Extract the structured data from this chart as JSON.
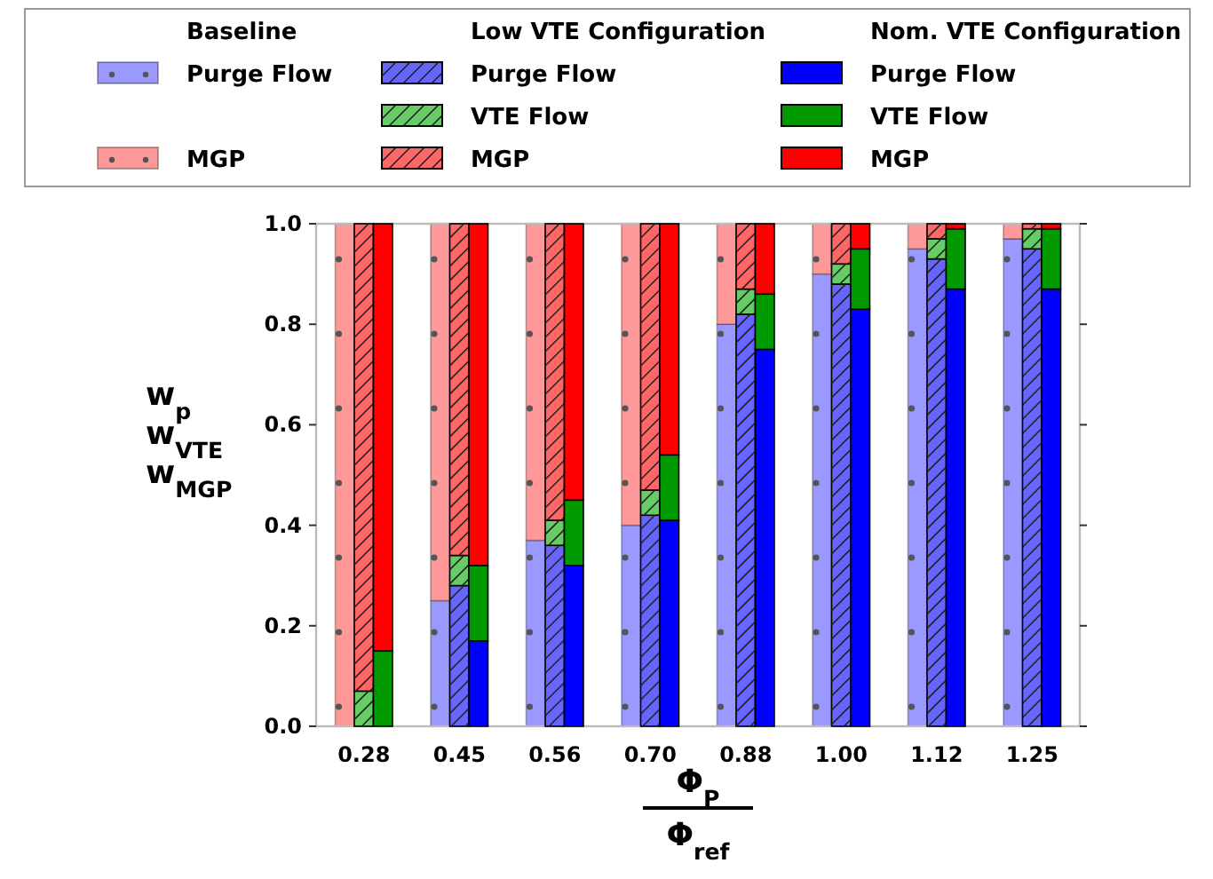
{
  "chart_data": [
    {
      "type": "bar",
      "stacked": true,
      "legend_title": "Baseline",
      "xlabel": "Φ$_{P}$\nΦ$_{ref}$",
      "ylabel": "w$_{p}$\nw$_{VTE}$\nw$_{MGP}$",
      "categories": [
        "0.28",
        "0.45",
        "0.56",
        "0.70",
        "0.88",
        "1.00",
        "1.12",
        "1.25"
      ],
      "ylim": [
        0,
        1
      ],
      "yticks": [
        {
          "value": 0,
          "label": "0.0"
        },
        {
          "value": 0.2,
          "label": "0.2"
        },
        {
          "value": 0.4,
          "label": "0.4"
        },
        {
          "value": 0.6,
          "label": "0.6"
        },
        {
          "value": 0.8,
          "label": "0.8"
        },
        {
          "value": 1,
          "label": "1.0"
        }
      ],
      "legend": "top",
      "series": [
        {
          "name": "Purge Flow",
          "color": "#9999ff",
          "values": [
            0,
            0.25,
            0.37,
            0.4,
            0.8,
            0.9,
            0.95,
            0.97
          ]
        },
        {
          "name": "MGP",
          "color": "#ff9999",
          "values": [
            1.0,
            0.75,
            0.63,
            0.6,
            0.2,
            0.1,
            0.05,
            0.03
          ]
        }
      ]
    },
    {
      "type": "bar",
      "stacked": true,
      "legend_title": "Low VTE Configuration",
      "categories": [
        "0.28",
        "0.45",
        "0.56",
        "0.70",
        "0.88",
        "1.00",
        "1.12",
        "1.25"
      ],
      "ylim": [
        0,
        1
      ],
      "legend": "top",
      "tick_labels": false,
      "series": [
        {
          "name": "Purge Flow",
          "color": "#6666ff",
          "values": [
            0,
            0.28,
            0.36,
            0.42,
            0.82,
            0.88,
            0.93,
            0.95
          ]
        },
        {
          "name": "VTE Flow",
          "color": "#66cc66",
          "values": [
            0.07,
            0.06,
            0.05,
            0.05,
            0.05,
            0.04,
            0.04,
            0.04
          ]
        },
        {
          "name": "MGP",
          "color": "#ff6666",
          "values": [
            0.93,
            0.66,
            0.59,
            0.53,
            0.13,
            0.08,
            0.03,
            0.01
          ]
        }
      ]
    },
    {
      "type": "bar",
      "stacked": true,
      "legend_title": "Nom. VTE Configuration",
      "categories": [
        "0.28",
        "0.45",
        "0.56",
        "0.70",
        "0.88",
        "1.00",
        "1.12",
        "1.25"
      ],
      "ylim": [
        0,
        1
      ],
      "legend": "top",
      "tick_labels": false,
      "series": [
        {
          "name": "Purge Flow",
          "color": "#0000ff",
          "values": [
            0,
            0.17,
            0.32,
            0.41,
            0.75,
            0.83,
            0.87,
            0.87
          ]
        },
        {
          "name": "VTE Flow",
          "color": "#009900",
          "values": [
            0.15,
            0.15,
            0.13,
            0.13,
            0.11,
            0.12,
            0.12,
            0.12
          ]
        },
        {
          "name": "MGP",
          "color": "#ff0000",
          "values": [
            0.85,
            0.68,
            0.55,
            0.46,
            0.14,
            0.05,
            0.01,
            0.01
          ]
        }
      ]
    }
  ]
}
